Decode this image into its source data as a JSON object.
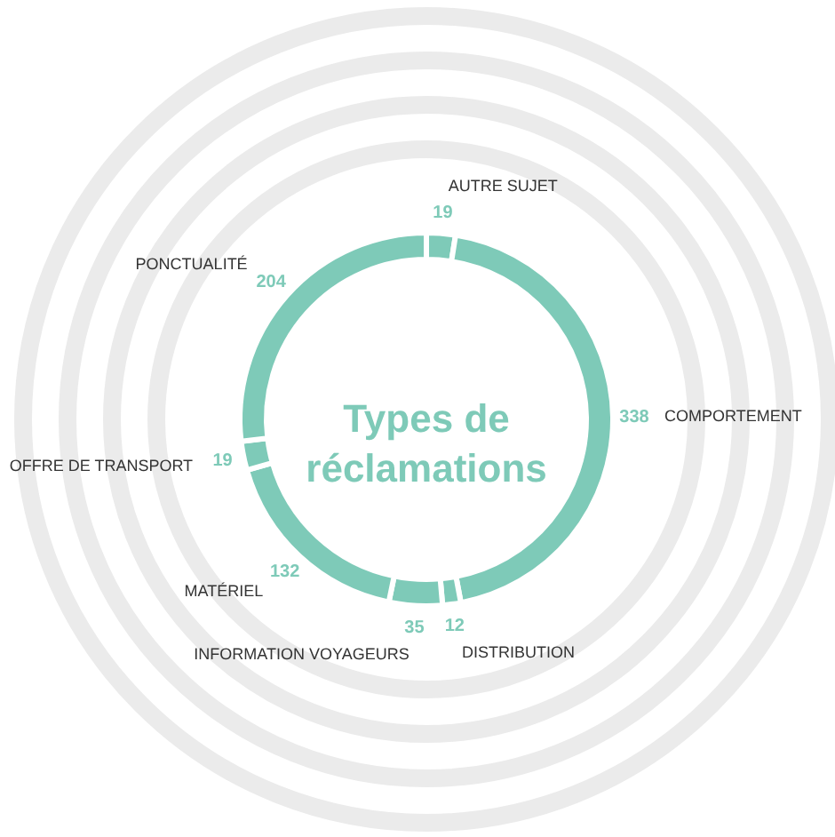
{
  "chart_data": {
    "type": "donut",
    "title": "Types de réclamations",
    "categories": [
      "AUTRE SUJET",
      "COMPORTEMENT",
      "DISTRIBUTION",
      "INFORMATION VOYAGEURS",
      "MATÉRIEL",
      "OFFRE DE TRANSPORT",
      "PONCTUALITÉ"
    ],
    "values": [
      19,
      338,
      12,
      35,
      132,
      19,
      204
    ],
    "colors": [
      "#7ecab8",
      "#7ecab8",
      "#7ecab8",
      "#7ecab8",
      "#7ecab8",
      "#7ecab8",
      "#7ecab8"
    ],
    "data_labels": true
  }
}
